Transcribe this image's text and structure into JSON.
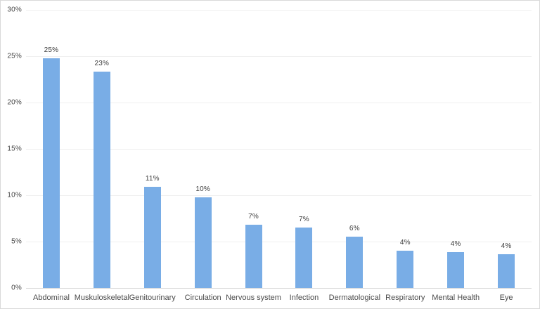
{
  "chart_data": {
    "type": "bar",
    "title": "",
    "xlabel": "",
    "ylabel": "",
    "categories": [
      "Abdominal",
      "Muskuloskeletal",
      "Genitourinary",
      "Circulation",
      "Nervous system",
      "Infection",
      "Dermatological",
      "Respiratory",
      "Mental Health",
      "Eye"
    ],
    "values": [
      24.8,
      23.3,
      10.9,
      9.8,
      6.8,
      6.5,
      5.5,
      4.0,
      3.9,
      3.6
    ],
    "bar_labels": [
      "25%",
      "23%",
      "11%",
      "10%",
      "7%",
      "7%",
      "6%",
      "4%",
      "4%",
      "4%"
    ],
    "ylim": [
      0,
      30
    ],
    "ytick_step": 5,
    "ytick_labels": [
      "0%",
      "5%",
      "10%",
      "15%",
      "20%",
      "25%",
      "30%"
    ],
    "grid": true,
    "legend": false
  },
  "colors": {
    "bar": "#79ade6",
    "gridline": "#efefef",
    "axis_line": "#d6d6d6",
    "tick_text": "#454545",
    "value_text": "#3c3c3c",
    "category_text": "#4a4a4a",
    "border": "#d9d9d9",
    "background": "#ffffff"
  }
}
